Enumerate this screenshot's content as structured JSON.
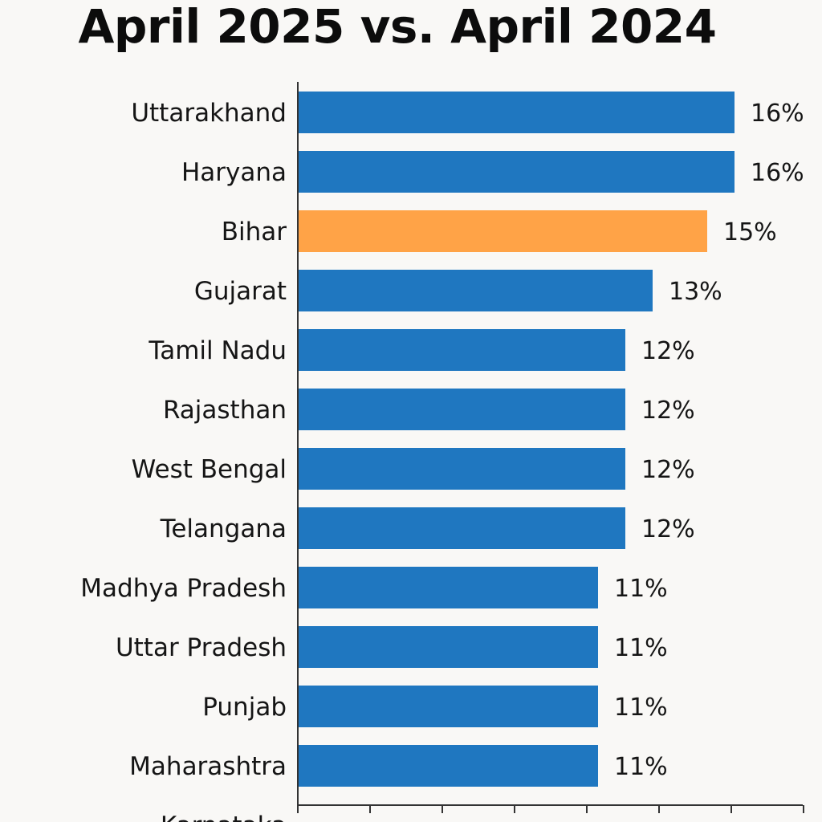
{
  "chart_data": {
    "type": "bar",
    "orientation": "horizontal",
    "title": "April 2025 vs. April 2024",
    "xlabel": "",
    "ylabel": "",
    "categories": [
      "Uttarakhand",
      "Haryana",
      "Bihar",
      "Gujarat",
      "Tamil Nadu",
      "Rajasthan",
      "West Bengal",
      "Telangana",
      "Madhya Pradesh",
      "Uttar Pradesh",
      "Punjab",
      "Maharashtra",
      "Karnataka"
    ],
    "values": [
      16,
      16,
      15,
      13,
      12,
      12,
      12,
      12,
      11,
      11,
      11,
      11,
      null
    ],
    "value_labels": [
      "16%",
      "16%",
      "15%",
      "13%",
      "12%",
      "12%",
      "12%",
      "12%",
      "11%",
      "11%",
      "11%",
      "11%",
      ""
    ],
    "highlight_category": "Bihar",
    "colors": {
      "default": "#1f77c0",
      "highlight": "#ffa347",
      "axis": "#333333",
      "text": "#151515",
      "background": "#f9f8f6"
    },
    "grid": false,
    "legend": "none"
  }
}
